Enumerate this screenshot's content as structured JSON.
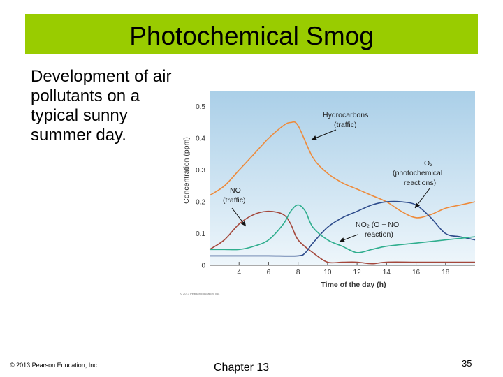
{
  "slide": {
    "title": "Photochemical Smog",
    "body": "Development of air pollutants on a typical sunny summer day.",
    "footer_copyright": "© 2013 Pearson Education, Inc.",
    "footer_chapter": "Chapter 13",
    "page_number": "35"
  },
  "colors": {
    "title_bar": "#99cc00",
    "plot_bg_top": "#aacfe8",
    "plot_bg_bottom": "#eef6fb",
    "hydrocarbons": "#ee8a3a",
    "no": "#a4473b",
    "o3": "#2e4c8c",
    "no2": "#2fae8e"
  },
  "chart_data": {
    "type": "line",
    "xlabel": "Time of the day (h)",
    "ylabel": "Concentration (ppm)",
    "xlim": [
      2,
      20
    ],
    "ylim": [
      0,
      0.55
    ],
    "xticks": [
      4,
      6,
      8,
      10,
      12,
      14,
      16,
      18
    ],
    "yticks": [
      0,
      0.1,
      0.2,
      0.3,
      0.4,
      0.5
    ],
    "grid": false,
    "copyright_note": "© 2013 Pearson Education, Inc.",
    "series": [
      {
        "name": "Hydrocarbons (traffic)",
        "color": "#ee8a3a",
        "x": [
          2,
          3,
          4,
          5,
          6,
          7,
          7.5,
          8,
          9,
          10,
          11,
          12,
          13,
          14,
          15,
          16,
          17,
          18,
          19,
          20
        ],
        "values": [
          0.22,
          0.25,
          0.3,
          0.35,
          0.4,
          0.44,
          0.45,
          0.44,
          0.34,
          0.29,
          0.26,
          0.24,
          0.22,
          0.2,
          0.17,
          0.15,
          0.16,
          0.18,
          0.19,
          0.2
        ]
      },
      {
        "name": "NO (traffic)",
        "color": "#a4473b",
        "x": [
          2,
          3,
          4,
          5,
          6,
          7,
          7.5,
          8,
          9,
          10,
          11,
          12,
          13,
          14,
          16,
          18,
          20
        ],
        "values": [
          0.05,
          0.08,
          0.13,
          0.16,
          0.17,
          0.16,
          0.13,
          0.08,
          0.04,
          0.01,
          0.01,
          0.01,
          0.005,
          0.01,
          0.01,
          0.01,
          0.01
        ]
      },
      {
        "name": "O3 (photochemical reactions)",
        "color": "#2e4c8c",
        "x": [
          2,
          4,
          6,
          8,
          8.5,
          9,
          10,
          11,
          12,
          13,
          14,
          15,
          16,
          17,
          18,
          19,
          20
        ],
        "values": [
          0.03,
          0.03,
          0.03,
          0.03,
          0.04,
          0.07,
          0.12,
          0.15,
          0.17,
          0.19,
          0.2,
          0.2,
          0.19,
          0.15,
          0.1,
          0.09,
          0.08
        ]
      },
      {
        "name": "NO2 (O + NO reaction)",
        "color": "#2fae8e",
        "x": [
          2,
          3,
          4,
          5,
          6,
          7,
          7.5,
          8,
          8.5,
          9,
          10,
          11,
          12,
          13,
          14,
          16,
          18,
          20
        ],
        "values": [
          0.05,
          0.05,
          0.05,
          0.06,
          0.08,
          0.13,
          0.17,
          0.19,
          0.17,
          0.12,
          0.08,
          0.06,
          0.04,
          0.05,
          0.06,
          0.07,
          0.08,
          0.09
        ]
      }
    ],
    "annotations": [
      {
        "text": [
          "Hydrocarbons",
          "(traffic)"
        ],
        "series": 0
      },
      {
        "text": [
          "NO",
          "(traffic)"
        ],
        "series": 1
      },
      {
        "text": [
          "O₃",
          "(photochemical",
          "reactions)"
        ],
        "series": 2
      },
      {
        "text": [
          "NO₂ (O + NO",
          "reaction)"
        ],
        "series": 3
      }
    ]
  }
}
